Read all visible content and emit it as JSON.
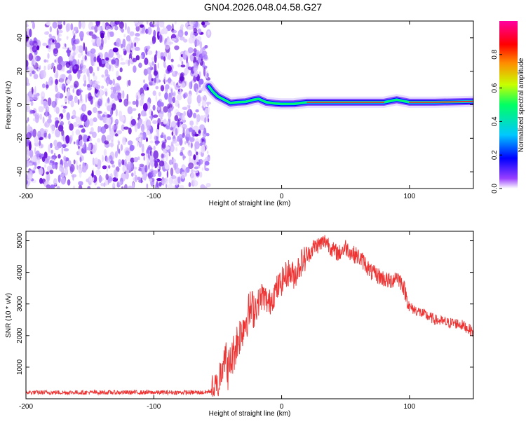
{
  "title": "GN04.2026.048.04.58.G27",
  "chart_data": [
    {
      "type": "heatmap",
      "xlabel": "Height of straight line (km)",
      "ylabel": "Frequency (Hz)",
      "xlim": [
        -200,
        150
      ],
      "ylim": [
        -50,
        50
      ],
      "x_ticks": [
        -200,
        -100,
        0,
        100
      ],
      "y_ticks": [
        -40,
        -20,
        0,
        20,
        40
      ],
      "x_tick_labels": [
        "-200",
        "-100",
        "0",
        "100"
      ],
      "y_tick_labels": [
        "-40",
        "-20",
        "0",
        "20",
        "40"
      ],
      "noise_region_x": [
        -200,
        -57
      ],
      "signal_ridge": [
        {
          "x": -57,
          "f": 11
        },
        {
          "x": -54,
          "f": 8
        },
        {
          "x": -50,
          "f": 5
        },
        {
          "x": -45,
          "f": 3
        },
        {
          "x": -40,
          "f": 1
        },
        {
          "x": -35,
          "f": 1.5
        },
        {
          "x": -28,
          "f": 1.8
        },
        {
          "x": -22,
          "f": 3
        },
        {
          "x": -18,
          "f": 3.5
        },
        {
          "x": -12,
          "f": 1.5
        },
        {
          "x": -5,
          "f": 0.8
        },
        {
          "x": 0,
          "f": 0.5
        },
        {
          "x": 10,
          "f": 0.6
        },
        {
          "x": 20,
          "f": 1.5
        },
        {
          "x": 40,
          "f": 1.5
        },
        {
          "x": 60,
          "f": 1.5
        },
        {
          "x": 80,
          "f": 1.5
        },
        {
          "x": 90,
          "f": 3
        },
        {
          "x": 100,
          "f": 1.5
        },
        {
          "x": 120,
          "f": 1.5
        },
        {
          "x": 150,
          "f": 2
        }
      ],
      "colorbar": {
        "label": "Normalized spectral amplitude",
        "range": [
          0,
          1
        ],
        "ticks": [
          0.0,
          0.2,
          0.4,
          0.6,
          0.8
        ],
        "tick_labels": [
          "0.0",
          "0.2",
          "0.4",
          "0.6",
          "0.8"
        ],
        "colors": [
          "#ffffff",
          "#7a00ff",
          "#0000ff",
          "#00c8ff",
          "#00ff64",
          "#c8ff00",
          "#ff8c00",
          "#ff0000",
          "#ff00a0"
        ]
      }
    },
    {
      "type": "line",
      "xlabel": "Height of straight line (km)",
      "ylabel": "SNR (10 * v/v)",
      "xlim": [
        -200,
        150
      ],
      "ylim": [
        0,
        5300
      ],
      "x_ticks": [
        -200,
        -100,
        0,
        100
      ],
      "y_ticks": [
        1000,
        2000,
        3000,
        4000,
        5000
      ],
      "x_tick_labels": [
        "-200",
        "-100",
        "0",
        "100"
      ],
      "y_tick_labels": [
        "1000",
        "2000",
        "3000",
        "4000",
        "5000"
      ],
      "series": [
        {
          "name": "SNR",
          "color": "#ee3333",
          "x": [
            -200,
            -150,
            -100,
            -60,
            -50,
            -45,
            -42,
            -38,
            -35,
            -30,
            -25,
            -20,
            -15,
            -10,
            -5,
            0,
            5,
            10,
            15,
            20,
            25,
            30,
            35,
            40,
            45,
            50,
            55,
            60,
            65,
            70,
            75,
            80,
            85,
            90,
            95,
            100,
            105,
            110,
            115,
            120,
            125,
            130,
            135,
            140,
            145,
            150
          ],
          "values": [
            200,
            200,
            200,
            200,
            300,
            1500,
            900,
            1400,
            1800,
            2300,
            2800,
            2900,
            3300,
            3000,
            3400,
            3700,
            4000,
            3900,
            4300,
            4500,
            4800,
            4900,
            5000,
            4700,
            4600,
            4800,
            4600,
            4500,
            4300,
            4000,
            3900,
            3800,
            3700,
            3900,
            3600,
            2900,
            2800,
            2700,
            2600,
            2500,
            2450,
            2400,
            2400,
            2350,
            2250,
            2100
          ]
        }
      ]
    }
  ]
}
